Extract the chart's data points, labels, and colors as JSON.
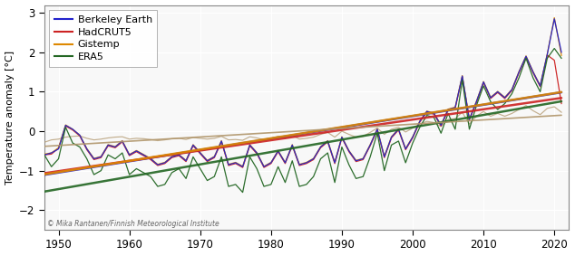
{
  "ylabel": "Temperature anomaly [°C]",
  "xlim": [
    1948,
    2022
  ],
  "ylim": [
    -2.5,
    3.2
  ],
  "yticks": [
    -2,
    -1,
    0,
    1,
    2,
    3
  ],
  "xticks": [
    1950,
    1960,
    1970,
    1980,
    1990,
    2000,
    2010,
    2020
  ],
  "legend_labels": [
    "Berkeley Earth",
    "HadCRUT5",
    "Gistemp",
    "ERA5"
  ],
  "line_colors": [
    "#2222cc",
    "#cc2222",
    "#dd8800",
    "#226622"
  ],
  "global_color": "#b0956a",
  "watermark": "© Mika Rantanen/Finnish Meteorological Institute",
  "years": [
    1948,
    1949,
    1950,
    1951,
    1952,
    1953,
    1954,
    1955,
    1956,
    1957,
    1958,
    1959,
    1960,
    1961,
    1962,
    1963,
    1964,
    1965,
    1966,
    1967,
    1968,
    1969,
    1970,
    1971,
    1972,
    1973,
    1974,
    1975,
    1976,
    1977,
    1978,
    1979,
    1980,
    1981,
    1982,
    1983,
    1984,
    1985,
    1986,
    1987,
    1988,
    1989,
    1990,
    1991,
    1992,
    1993,
    1994,
    1995,
    1996,
    1997,
    1998,
    1999,
    2000,
    2001,
    2002,
    2003,
    2004,
    2005,
    2006,
    2007,
    2008,
    2009,
    2010,
    2011,
    2012,
    2013,
    2014,
    2015,
    2016,
    2017,
    2018,
    2019,
    2020,
    2021
  ],
  "berkeley": [
    -0.6,
    -0.55,
    -0.45,
    0.15,
    0.05,
    -0.1,
    -0.45,
    -0.7,
    -0.65,
    -0.35,
    -0.4,
    -0.25,
    -0.6,
    -0.5,
    -0.6,
    -0.7,
    -0.85,
    -0.8,
    -0.65,
    -0.6,
    -0.75,
    -0.35,
    -0.55,
    -0.75,
    -0.65,
    -0.25,
    -0.85,
    -0.8,
    -0.9,
    -0.35,
    -0.55,
    -0.9,
    -0.8,
    -0.5,
    -0.8,
    -0.35,
    -0.85,
    -0.8,
    -0.7,
    -0.4,
    -0.25,
    -0.8,
    -0.15,
    -0.5,
    -0.75,
    -0.7,
    -0.35,
    0.05,
    -0.65,
    -0.15,
    0.05,
    -0.45,
    -0.15,
    0.25,
    0.5,
    0.45,
    0.15,
    0.55,
    0.6,
    1.4,
    0.3,
    0.75,
    1.25,
    0.85,
    1.0,
    0.85,
    1.05,
    1.5,
    1.9,
    1.5,
    1.15,
    1.95,
    2.85,
    2.0
  ],
  "hadcrut5": [
    -0.6,
    -0.58,
    -0.43,
    0.13,
    0.03,
    -0.12,
    -0.47,
    -0.72,
    -0.67,
    -0.37,
    -0.42,
    -0.27,
    -0.62,
    -0.52,
    -0.62,
    -0.72,
    -0.87,
    -0.82,
    -0.67,
    -0.62,
    -0.77,
    -0.37,
    -0.57,
    -0.77,
    -0.67,
    -0.27,
    -0.87,
    -0.82,
    -0.92,
    -0.37,
    -0.57,
    -0.92,
    -0.82,
    -0.52,
    -0.82,
    -0.37,
    -0.87,
    -0.82,
    -0.72,
    -0.42,
    -0.27,
    -0.82,
    -0.17,
    -0.52,
    -0.77,
    -0.72,
    -0.37,
    0.03,
    -0.67,
    -0.17,
    0.03,
    -0.47,
    -0.17,
    0.23,
    0.48,
    0.43,
    0.13,
    0.53,
    0.58,
    1.38,
    0.28,
    0.73,
    1.23,
    0.83,
    0.98,
    0.83,
    1.03,
    1.48,
    1.88,
    1.48,
    1.13,
    1.93,
    1.8,
    0.7
  ],
  "gistemp": [
    -0.58,
    -0.55,
    -0.42,
    0.16,
    0.05,
    -0.1,
    -0.44,
    -0.69,
    -0.64,
    -0.34,
    -0.39,
    -0.24,
    -0.59,
    -0.49,
    -0.59,
    -0.69,
    -0.84,
    -0.79,
    -0.64,
    -0.59,
    -0.74,
    -0.34,
    -0.54,
    -0.74,
    -0.64,
    -0.24,
    -0.84,
    -0.79,
    -0.89,
    -0.34,
    -0.54,
    -0.89,
    -0.79,
    -0.49,
    -0.79,
    -0.34,
    -0.84,
    -0.79,
    -0.69,
    -0.39,
    -0.24,
    -0.79,
    -0.14,
    -0.49,
    -0.74,
    -0.69,
    -0.34,
    0.06,
    -0.64,
    -0.14,
    0.06,
    -0.44,
    -0.14,
    0.26,
    0.51,
    0.46,
    0.16,
    0.56,
    0.61,
    1.41,
    0.31,
    0.76,
    1.26,
    0.86,
    1.01,
    0.86,
    1.06,
    1.51,
    1.91,
    1.51,
    1.16,
    1.96,
    2.88,
    1.92
  ],
  "era5": [
    -0.6,
    -0.9,
    -0.7,
    0.1,
    -0.3,
    -0.4,
    -0.7,
    -1.1,
    -1.0,
    -0.6,
    -0.7,
    -0.55,
    -1.1,
    -0.95,
    -1.05,
    -1.15,
    -1.4,
    -1.35,
    -1.05,
    -0.95,
    -1.2,
    -0.65,
    -0.95,
    -1.25,
    -1.15,
    -0.65,
    -1.4,
    -1.35,
    -1.55,
    -0.65,
    -0.95,
    -1.4,
    -1.35,
    -0.9,
    -1.3,
    -0.75,
    -1.4,
    -1.35,
    -1.15,
    -0.7,
    -0.55,
    -1.3,
    -0.4,
    -0.85,
    -1.2,
    -1.15,
    -0.65,
    -0.05,
    -1.0,
    -0.35,
    -0.25,
    -0.8,
    -0.3,
    0.1,
    0.4,
    0.35,
    -0.05,
    0.45,
    0.05,
    1.3,
    0.05,
    0.65,
    1.15,
    0.75,
    0.55,
    0.7,
    0.95,
    1.35,
    1.85,
    1.35,
    1.0,
    1.85,
    2.1,
    1.85
  ],
  "global_temp": [
    -0.28,
    -0.22,
    -0.2,
    -0.15,
    -0.13,
    -0.12,
    -0.18,
    -0.22,
    -0.2,
    -0.17,
    -0.15,
    -0.14,
    -0.2,
    -0.18,
    -0.19,
    -0.21,
    -0.24,
    -0.22,
    -0.19,
    -0.18,
    -0.21,
    -0.16,
    -0.18,
    -0.2,
    -0.18,
    -0.13,
    -0.22,
    -0.21,
    -0.23,
    -0.14,
    -0.17,
    -0.22,
    -0.18,
    -0.13,
    -0.18,
    -0.11,
    -0.2,
    -0.18,
    -0.15,
    -0.08,
    -0.03,
    -0.15,
    0.0,
    -0.08,
    -0.15,
    -0.13,
    -0.03,
    0.08,
    -0.08,
    0.05,
    0.1,
    -0.02,
    0.08,
    0.18,
    0.25,
    0.22,
    0.12,
    0.3,
    0.32,
    0.48,
    0.18,
    0.38,
    0.5,
    0.38,
    0.45,
    0.38,
    0.45,
    0.55,
    0.65,
    0.52,
    0.42,
    0.58,
    0.62,
    0.48
  ]
}
